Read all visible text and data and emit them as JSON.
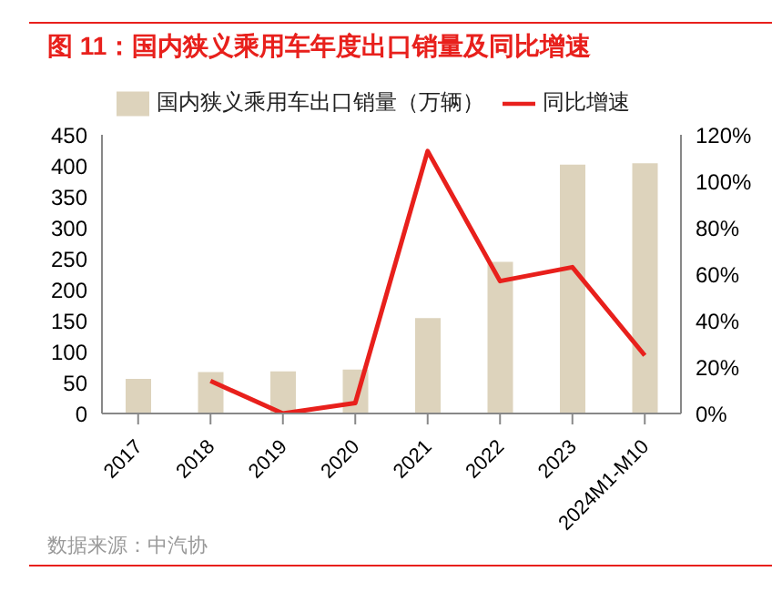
{
  "chart_data": {
    "type": "bar",
    "title": "图 11：国内狭义乘用车年度出口销量及同比增速",
    "categories": [
      "2017",
      "2018",
      "2019",
      "2020",
      "2021",
      "2022",
      "2023",
      "2024M1-M10"
    ],
    "series": [
      {
        "name": "国内狭义乘用车出口销量（万辆）",
        "color": "#ddd3bc",
        "values": [
          56,
          67,
          68,
          71,
          154,
          245,
          402,
          404
        ]
      },
      {
        "name": "同比增速",
        "type": "line",
        "axis": "y2",
        "color": "#e8201c",
        "values": [
          null,
          14,
          0,
          4.5,
          113,
          57,
          63,
          25
        ]
      }
    ],
    "ylim": [
      0,
      450
    ],
    "yticks": [
      0,
      50,
      100,
      150,
      200,
      250,
      300,
      350,
      400,
      450
    ],
    "y2lim": [
      0,
      120
    ],
    "y2ticks": [
      {
        "value": 0,
        "label": "0%"
      },
      {
        "value": 20,
        "label": "20%"
      },
      {
        "value": 40,
        "label": "40%"
      },
      {
        "value": 60,
        "label": "60%"
      },
      {
        "value": 80,
        "label": "80%"
      },
      {
        "value": 100,
        "label": "100%"
      },
      {
        "value": 120,
        "label": "120%"
      }
    ],
    "legend": "top",
    "marker": "none",
    "annotations": [
      "数据来源：中汽协"
    ]
  }
}
